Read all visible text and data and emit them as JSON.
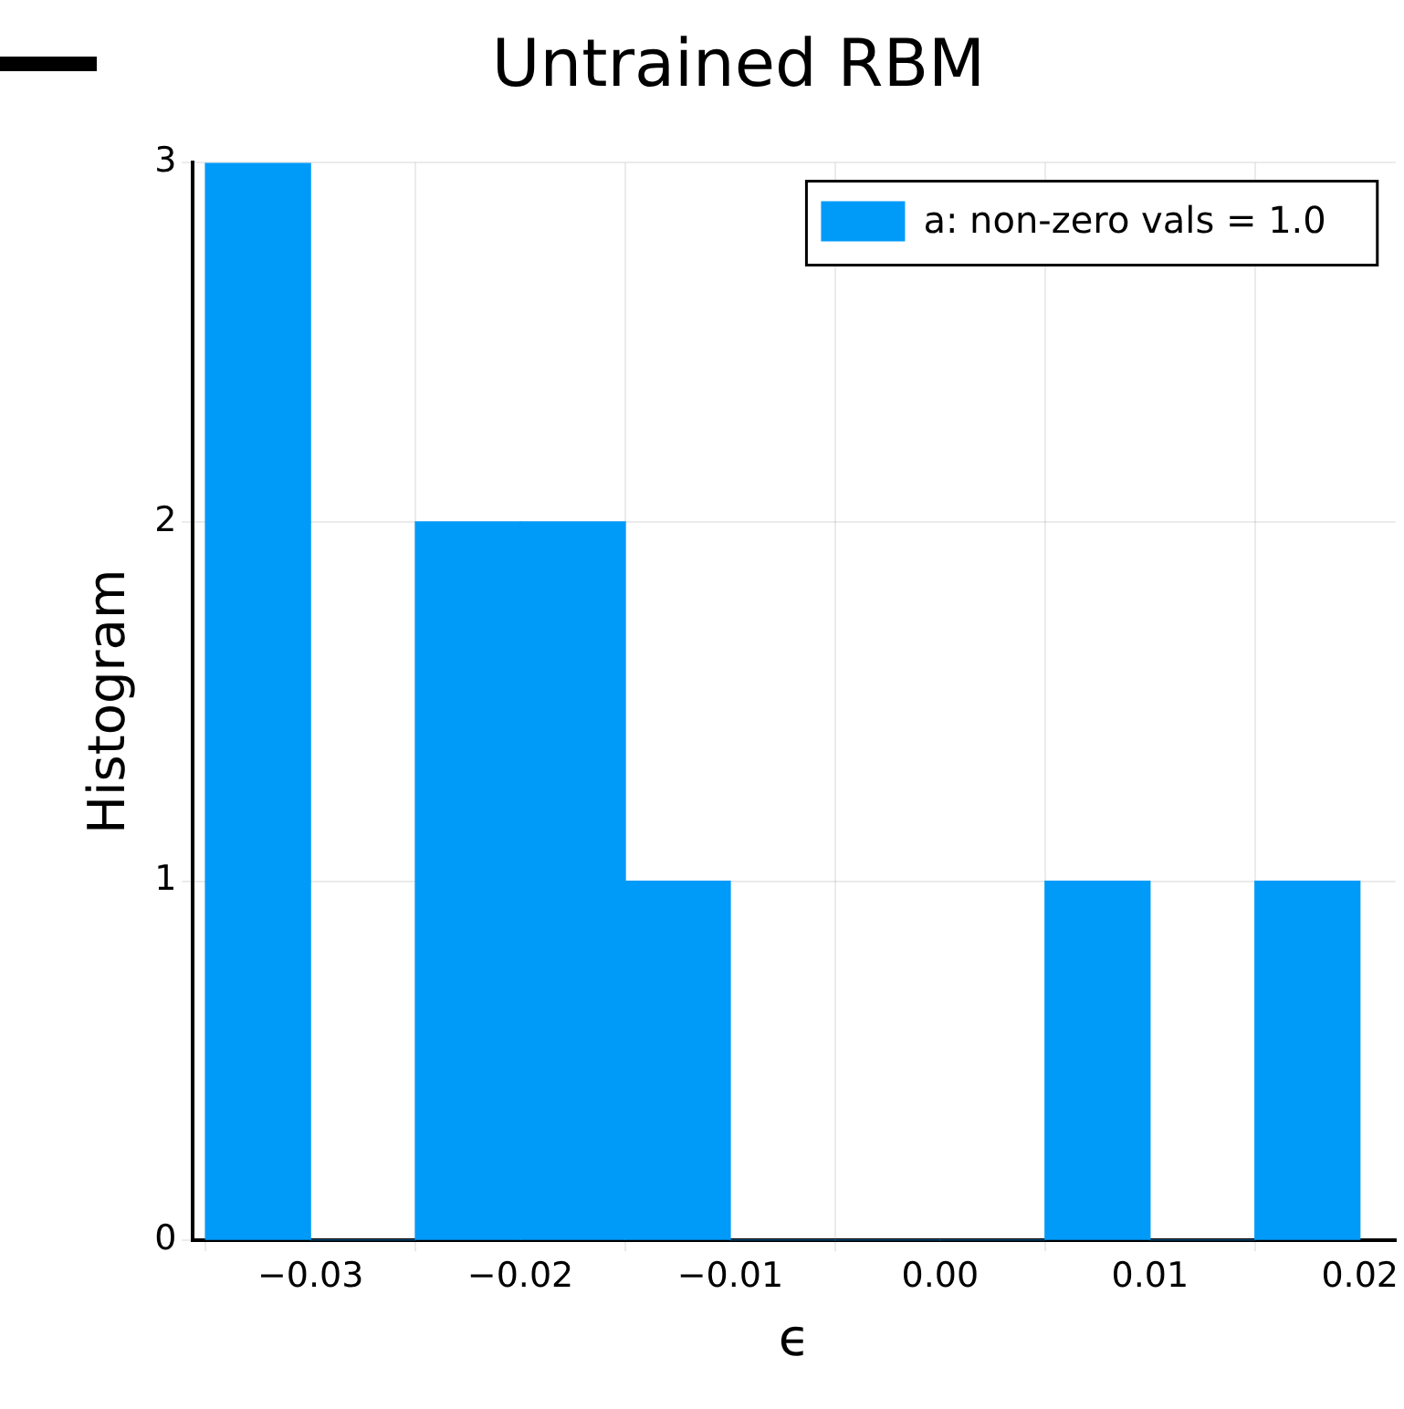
{
  "chart_data": {
    "type": "histogram",
    "title": "Untrained RBM",
    "xlabel": "ϵ",
    "ylabel": "Histogram",
    "bins": [
      -0.035,
      -0.03,
      -0.025,
      -0.02,
      -0.015,
      -0.01,
      -0.005,
      0,
      0.005,
      0.01,
      0.015,
      0.02
    ],
    "series": [
      {
        "name": "a: non-zero vals = 1.0",
        "color": "#009af9",
        "values": [
          3,
          0,
          2,
          2,
          1,
          0,
          0,
          0,
          1,
          0,
          1
        ]
      }
    ],
    "xlim": [
      -0.0356,
      0.0217
    ],
    "xticks": [
      {
        "value": -0.03,
        "label": "−0.03"
      },
      {
        "value": -0.02,
        "label": "−0.02"
      },
      {
        "value": -0.01,
        "label": "−0.01"
      },
      {
        "value": 0,
        "label": "0.00"
      },
      {
        "value": 0.01,
        "label": "0.01"
      },
      {
        "value": 0.02,
        "label": "0.02"
      }
    ],
    "ylim": [
      0,
      3
    ],
    "yticks": [
      0,
      1,
      2,
      3
    ],
    "grid": true,
    "legend": "top right"
  }
}
